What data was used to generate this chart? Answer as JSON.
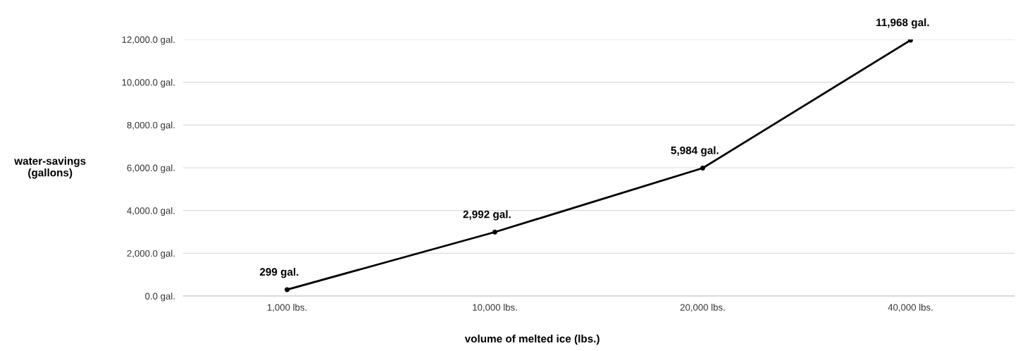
{
  "chart_data": {
    "type": "line",
    "xlabel": "volume of melted ice (lbs.)",
    "ylabel": "water-savings\n(gallons)",
    "categories": [
      "1,000 lbs.",
      "10,000 lbs.",
      "20,000 lbs.",
      "40,000 lbs."
    ],
    "series": [
      {
        "color": "#000000",
        "values": [
          299,
          2992,
          5984,
          11968
        ],
        "value_labels": [
          "299 gal.",
          "2,992 gal.",
          "5,984 gal.",
          "11,968 gal."
        ]
      }
    ],
    "ylim": [
      0,
      12000
    ],
    "yticks": [
      {
        "value": 0,
        "label": "0.0 gal."
      },
      {
        "value": 2000,
        "label": "2,000.0 gal."
      },
      {
        "value": 4000,
        "label": "4,000.0 gal."
      },
      {
        "value": 6000,
        "label": "6,000.0 gal."
      },
      {
        "value": 8000,
        "label": "8,000.0 gal."
      },
      {
        "value": 10000,
        "label": "10,000.0 gal."
      },
      {
        "value": 12000,
        "label": "12,000.0 gal."
      }
    ],
    "grid": "y",
    "marker": "circle",
    "line_style": "solid"
  }
}
